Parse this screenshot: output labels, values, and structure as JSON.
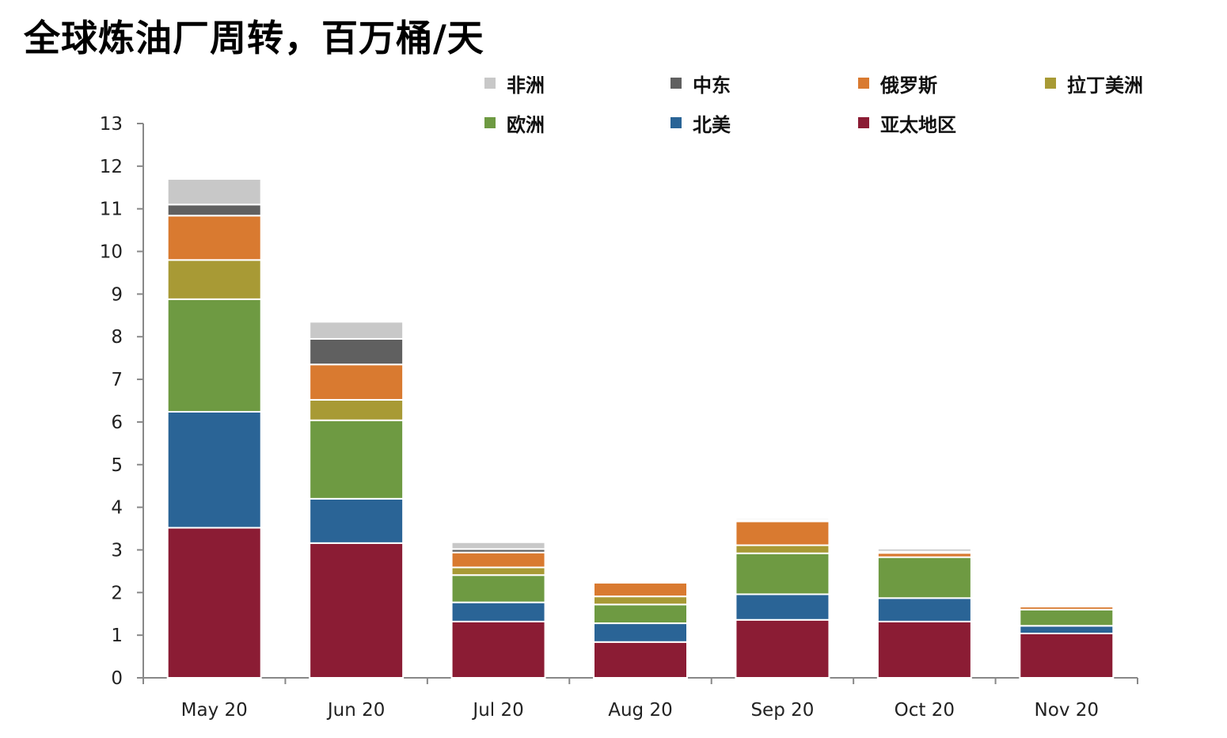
{
  "chart_data": {
    "type": "bar",
    "stacked": true,
    "title": "全球炼油厂周转，百万桶/天",
    "categories": [
      "May 20",
      "Jun 20",
      "Jul 20",
      "Aug 20",
      "Sep 20",
      "Oct 20",
      "Nov 20"
    ],
    "ylim": [
      0,
      13
    ],
    "yticks": [
      0,
      1,
      2,
      3,
      4,
      5,
      6,
      7,
      8,
      9,
      10,
      11,
      12,
      13
    ],
    "grid": false,
    "legend_position": "top",
    "series": [
      {
        "name": "亚太地区",
        "color": "#8b1c34",
        "values": [
          3.52,
          3.16,
          1.32,
          0.84,
          1.36,
          1.32,
          1.04
        ]
      },
      {
        "name": "北美",
        "color": "#2a6496",
        "values": [
          2.72,
          1.04,
          0.45,
          0.44,
          0.6,
          0.55,
          0.18
        ]
      },
      {
        "name": "欧洲",
        "color": "#6e9a42",
        "values": [
          2.64,
          1.84,
          0.64,
          0.44,
          0.96,
          0.96,
          0.38
        ]
      },
      {
        "name": "拉丁美洲",
        "color": "#a89a35",
        "values": [
          0.92,
          0.48,
          0.18,
          0.19,
          0.19,
          0.0,
          0.0
        ]
      },
      {
        "name": "俄罗斯",
        "color": "#d97a30",
        "values": [
          1.04,
          0.83,
          0.35,
          0.32,
          0.56,
          0.1,
          0.07
        ]
      },
      {
        "name": "中东",
        "color": "#606060",
        "values": [
          0.26,
          0.6,
          0.08,
          0.0,
          0.03,
          0.03,
          0.0
        ]
      },
      {
        "name": "非洲",
        "color": "#c8c8c8",
        "values": [
          0.6,
          0.4,
          0.16,
          0.0,
          0.04,
          0.07,
          0.0
        ]
      }
    ],
    "legend_order": [
      "非洲",
      "中东",
      "俄罗斯",
      "拉丁美洲",
      "欧洲",
      "北美",
      "亚太地区"
    ]
  }
}
